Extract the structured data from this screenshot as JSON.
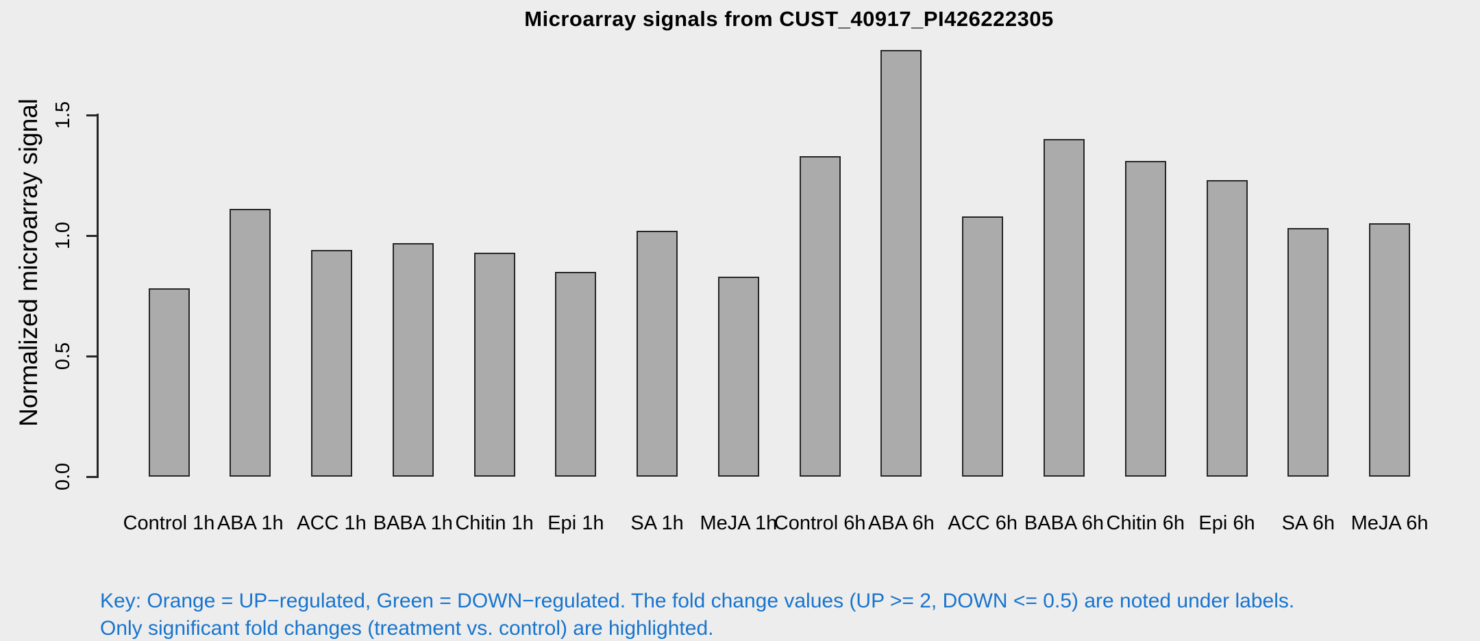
{
  "chart_data": {
    "type": "bar",
    "title": "Microarray signals from CUST_40917_PI426222305",
    "xlabel": "",
    "ylabel": "Normalized microarray signal",
    "categories": [
      "Control 1h",
      "ABA 1h",
      "ACC 1h",
      "BABA 1h",
      "Chitin 1h",
      "Epi 1h",
      "SA 1h",
      "MeJA 1h",
      "Control 6h",
      "ABA 6h",
      "ACC 6h",
      "BABA 6h",
      "Chitin 6h",
      "Epi 6h",
      "SA 6h",
      "MeJA 6h"
    ],
    "values": [
      0.78,
      1.11,
      0.94,
      0.97,
      0.93,
      0.85,
      1.02,
      0.83,
      1.33,
      1.77,
      1.08,
      1.4,
      1.31,
      1.23,
      1.03,
      1.05
    ],
    "y_ticks": [
      0.0,
      0.5,
      1.0,
      1.5
    ],
    "y_tick_labels": [
      "0.0",
      "0.5",
      "1.0",
      "1.5"
    ],
    "ylim": [
      0,
      1.77
    ],
    "grid": false,
    "legend_position": "none",
    "bar_fill_color": "#ABABAB",
    "bar_border_color": "#262626",
    "background_color": "#EDEDED",
    "annotation_color": "#1874CD",
    "annotations": [
      "Key: Orange = UP−regulated, Green = DOWN−regulated. The fold change values (UP >= 2, DOWN <= 0.5) are noted under labels.",
      "Only significant fold changes (treatment vs. control) are highlighted."
    ]
  }
}
